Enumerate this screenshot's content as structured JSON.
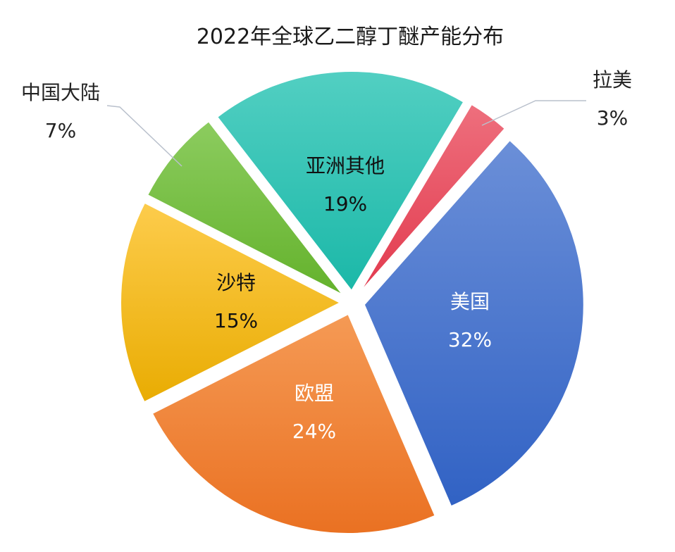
{
  "chart_data": {
    "type": "pie",
    "title": "2022年全球乙二醇丁醚产能分布",
    "slices": [
      {
        "name": "美国",
        "value": 32,
        "label": "32%",
        "color_top": "#6b8fd8",
        "color_bottom": "#3162c4",
        "label_color": "light",
        "outside": false
      },
      {
        "name": "欧盟",
        "value": 24,
        "label": "24%",
        "color_top": "#f59a55",
        "color_bottom": "#ea7122",
        "label_color": "light",
        "outside": false
      },
      {
        "name": "沙特",
        "value": 15,
        "label": "15%",
        "color_top": "#fdcc4c",
        "color_bottom": "#e9ac02",
        "label_color": "dark",
        "outside": false
      },
      {
        "name": "中国大陆",
        "value": 7,
        "label": "7%",
        "color_top": "#8ccc5f",
        "color_bottom": "#64b22c",
        "label_color": "dark",
        "outside": true
      },
      {
        "name": "亚洲其他",
        "value": 19,
        "label": "19%",
        "color_top": "#52cfc2",
        "color_bottom": "#1bb8a8",
        "label_color": "dark",
        "outside": false
      },
      {
        "name": "拉美",
        "value": 3,
        "label": "3%",
        "color_top": "#ee6f7d",
        "color_bottom": "#e23a4e",
        "label_color": "dark",
        "outside": true
      }
    ],
    "legend": "none"
  }
}
